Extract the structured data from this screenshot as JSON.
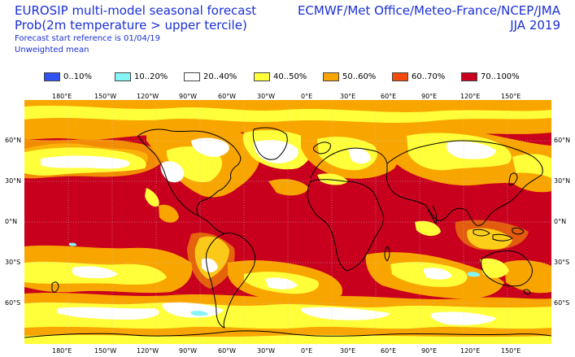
{
  "header": {
    "title": "EUROSIP multi-model seasonal forecast",
    "subtitle": "Prob(2m temperature > upper tercile)",
    "reference": "Forecast start reference is 01/04/19",
    "weighting": "Unweighted mean",
    "centres": "ECMWF/Met Office/Meteo-France/NCEP/JMA",
    "season": "JJA 2019"
  },
  "legend": [
    {
      "label": "0..10%",
      "color": "#2f52f0"
    },
    {
      "label": "10..20%",
      "color": "#86f5f5"
    },
    {
      "label": "20..40%",
      "color": "#ffffff"
    },
    {
      "label": "40..50%",
      "color": "#ffff3a"
    },
    {
      "label": "50..60%",
      "color": "#f9a500"
    },
    {
      "label": "60..70%",
      "color": "#f44a0d"
    },
    {
      "label": "70..100%",
      "color": "#c8001e"
    }
  ],
  "lon_ticks": [
    "180°E",
    "150°W",
    "120°W",
    "90°W",
    "60°W",
    "30°W",
    "0°E",
    "30°E",
    "60°E",
    "90°E",
    "120°E",
    "150°E"
  ],
  "lat_ticks": [
    "60°N",
    "30°N",
    "0°N",
    "30°S",
    "60°S"
  ]
}
